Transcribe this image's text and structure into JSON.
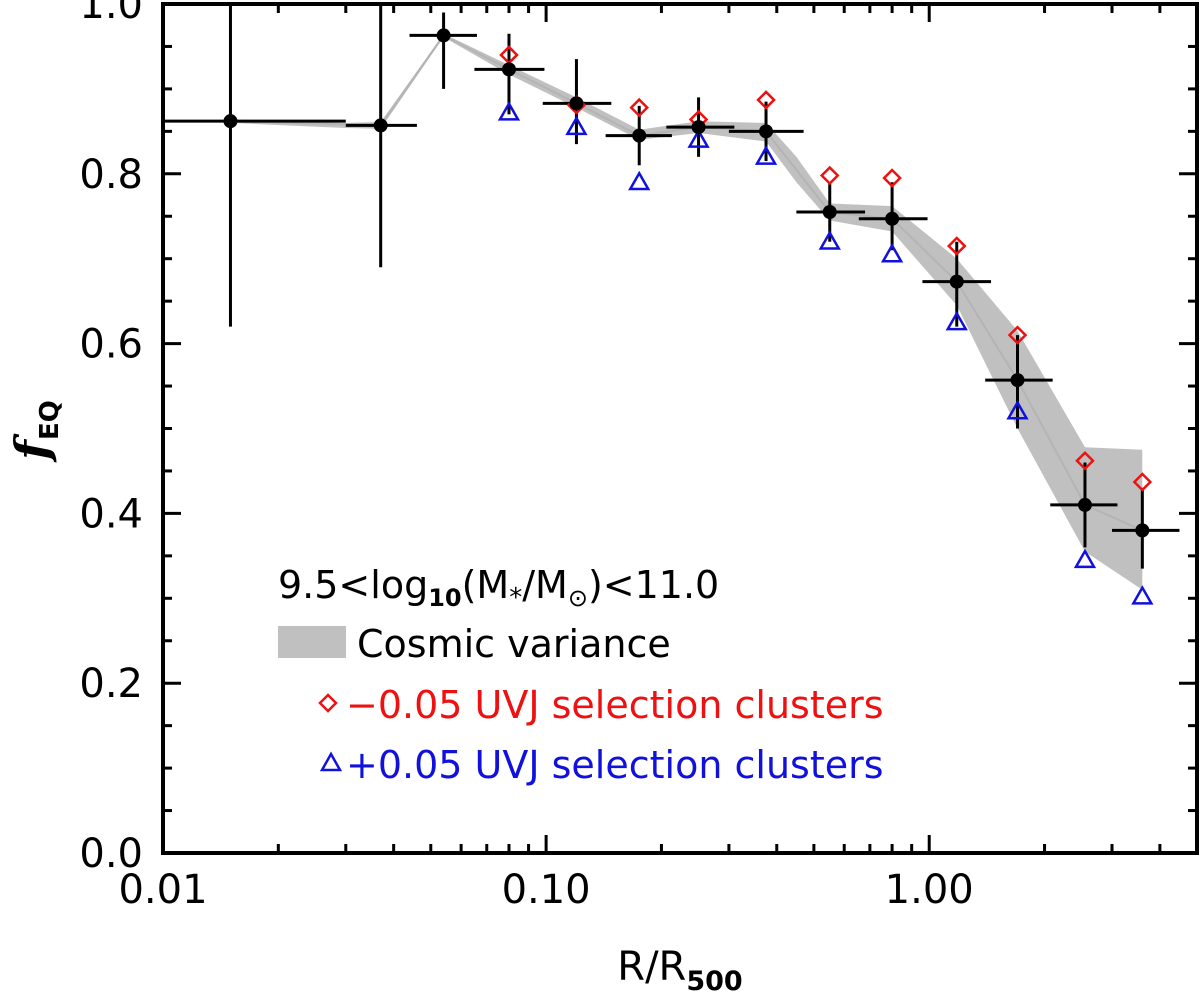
{
  "chart_data": {
    "type": "scatter",
    "x_scale": "log",
    "xlim": [
      0.01,
      5.0
    ],
    "ylim": [
      0.0,
      1.0
    ],
    "x_tick_labels": [
      {
        "value": 0.01,
        "label": "0.01"
      },
      {
        "value": 0.1,
        "label": "0.10"
      },
      {
        "value": 1.0,
        "label": "1.00"
      }
    ],
    "y_tick_labels": [
      {
        "value": 0.0,
        "label": "0.0"
      },
      {
        "value": 0.2,
        "label": "0.2"
      },
      {
        "value": 0.4,
        "label": "0.4"
      },
      {
        "value": 0.6,
        "label": "0.6"
      },
      {
        "value": 0.8,
        "label": "0.8"
      },
      {
        "value": 1.0,
        "label": "1.0"
      }
    ],
    "xlabel": {
      "main": "R/R",
      "sub": "500"
    },
    "ylabel": {
      "main": "f",
      "sub": "EQ"
    },
    "legend": {
      "position": "bottom-left",
      "mass_prefix": "9.5<log",
      "mass_sub": "10",
      "mass_mid1": "(M",
      "mass_star": "*",
      "mass_mid2": "/M",
      "mass_sun": "⊙",
      "mass_suffix": ")<11.0",
      "band_label": "Cosmic variance",
      "red_label": "−0.05 UVJ selection clusters",
      "blue_label": "+0.05 UVJ selection clusters"
    },
    "colors": {
      "main": "#000000",
      "band": "#c0c0c0",
      "red": "#ee1111",
      "blue": "#1111dd",
      "line": "#b4b4b4"
    },
    "main_series": {
      "name": "f_EQ",
      "points": [
        {
          "x": 0.015,
          "y": 0.862,
          "xlo": 0.0065,
          "xhi": 0.03,
          "ylo": 0.62,
          "yhi": 1.0
        },
        {
          "x": 0.037,
          "y": 0.857,
          "xlo": 0.03,
          "xhi": 0.046,
          "ylo": 0.69,
          "yhi": 1.0
        },
        {
          "x": 0.054,
          "y": 0.963,
          "xlo": 0.044,
          "xhi": 0.066,
          "ylo": 0.9,
          "yhi": 0.99
        },
        {
          "x": 0.08,
          "y": 0.923,
          "xlo": 0.065,
          "xhi": 0.099,
          "ylo": 0.87,
          "yhi": 0.965
        },
        {
          "x": 0.12,
          "y": 0.883,
          "xlo": 0.098,
          "xhi": 0.148,
          "ylo": 0.835,
          "yhi": 0.935
        },
        {
          "x": 0.175,
          "y": 0.845,
          "xlo": 0.143,
          "xhi": 0.213,
          "ylo": 0.81,
          "yhi": 0.88
        },
        {
          "x": 0.25,
          "y": 0.855,
          "xlo": 0.206,
          "xhi": 0.31,
          "ylo": 0.82,
          "yhi": 0.89
        },
        {
          "x": 0.375,
          "y": 0.85,
          "xlo": 0.3,
          "xhi": 0.47,
          "ylo": 0.815,
          "yhi": 0.885
        },
        {
          "x": 0.55,
          "y": 0.755,
          "xlo": 0.45,
          "xhi": 0.68,
          "ylo": 0.72,
          "yhi": 0.79
        },
        {
          "x": 0.8,
          "y": 0.747,
          "xlo": 0.655,
          "xhi": 0.99,
          "ylo": 0.71,
          "yhi": 0.79
        },
        {
          "x": 1.18,
          "y": 0.673,
          "xlo": 0.96,
          "xhi": 1.45,
          "ylo": 0.62,
          "yhi": 0.72
        },
        {
          "x": 1.7,
          "y": 0.557,
          "xlo": 1.4,
          "xhi": 2.1,
          "ylo": 0.5,
          "yhi": 0.61
        },
        {
          "x": 2.55,
          "y": 0.41,
          "xlo": 2.07,
          "xhi": 3.1,
          "ylo": 0.36,
          "yhi": 0.46
        },
        {
          "x": 3.6,
          "y": 0.38,
          "xlo": 3.0,
          "xhi": 4.5,
          "ylo": 0.335,
          "yhi": 0.43
        }
      ]
    },
    "cosmic_variance_band": {
      "x": [
        0.015,
        0.03,
        0.037,
        0.054,
        0.08,
        0.12,
        0.175,
        0.25,
        0.375,
        0.45,
        0.55,
        0.8,
        1.18,
        1.7,
        2.55,
        3.6
      ],
      "upper": [
        0.864,
        0.86,
        0.861,
        0.965,
        0.928,
        0.89,
        0.852,
        0.862,
        0.86,
        0.82,
        0.765,
        0.762,
        0.7,
        0.615,
        0.478,
        0.475
      ],
      "lower": [
        0.86,
        0.854,
        0.853,
        0.961,
        0.917,
        0.878,
        0.84,
        0.848,
        0.838,
        0.79,
        0.745,
        0.732,
        0.645,
        0.5,
        0.355,
        0.31
      ]
    },
    "red_series": {
      "name": "−0.05 UVJ selection clusters",
      "marker": "diamond",
      "points": [
        {
          "x": 0.08,
          "y": 0.94
        },
        {
          "x": 0.12,
          "y": 0.881
        },
        {
          "x": 0.175,
          "y": 0.878
        },
        {
          "x": 0.25,
          "y": 0.864
        },
        {
          "x": 0.375,
          "y": 0.887
        },
        {
          "x": 0.55,
          "y": 0.798
        },
        {
          "x": 0.8,
          "y": 0.795
        },
        {
          "x": 1.18,
          "y": 0.715
        },
        {
          "x": 1.7,
          "y": 0.61
        },
        {
          "x": 2.55,
          "y": 0.462
        },
        {
          "x": 3.6,
          "y": 0.437
        }
      ]
    },
    "blue_series": {
      "name": "+0.05 UVJ selection clusters",
      "marker": "triangle",
      "points": [
        {
          "x": 0.08,
          "y": 0.872
        },
        {
          "x": 0.12,
          "y": 0.855
        },
        {
          "x": 0.175,
          "y": 0.79
        },
        {
          "x": 0.25,
          "y": 0.84
        },
        {
          "x": 0.375,
          "y": 0.82
        },
        {
          "x": 0.55,
          "y": 0.72
        },
        {
          "x": 0.8,
          "y": 0.705
        },
        {
          "x": 1.18,
          "y": 0.625
        },
        {
          "x": 1.7,
          "y": 0.52
        },
        {
          "x": 2.55,
          "y": 0.345
        },
        {
          "x": 3.6,
          "y": 0.302
        }
      ]
    }
  }
}
